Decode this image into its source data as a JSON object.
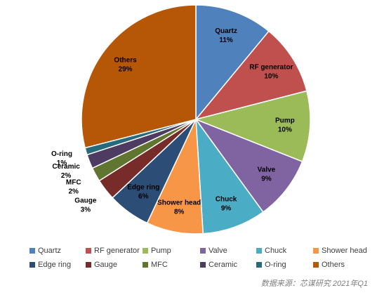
{
  "chart_data": {
    "type": "pie",
    "categories": [
      "Quartz",
      "RF generator",
      "Pump",
      "Valve",
      "Chuck",
      "Shower head",
      "Edge ring",
      "Gauge",
      "MFC",
      "Ceramic",
      "O-ring",
      "Others"
    ],
    "values": [
      11,
      10,
      10,
      9,
      9,
      8,
      6,
      3,
      2,
      2,
      1,
      29
    ],
    "value_labels": [
      "11%",
      "10%",
      "10%",
      "9%",
      "9%",
      "8%",
      "6%",
      "3%",
      "2%",
      "2%",
      "1%",
      "29%"
    ],
    "colors": [
      "#4f81bd",
      "#c0504d",
      "#9bbb59",
      "#8064a2",
      "#4bacc6",
      "#f79646",
      "#2c4d75",
      "#772c2a",
      "#5f7530",
      "#4d3b62",
      "#276a7c",
      "#b65708"
    ],
    "legend": "bottom",
    "source": "数据来源：芯谋研究  2021年Q1"
  }
}
